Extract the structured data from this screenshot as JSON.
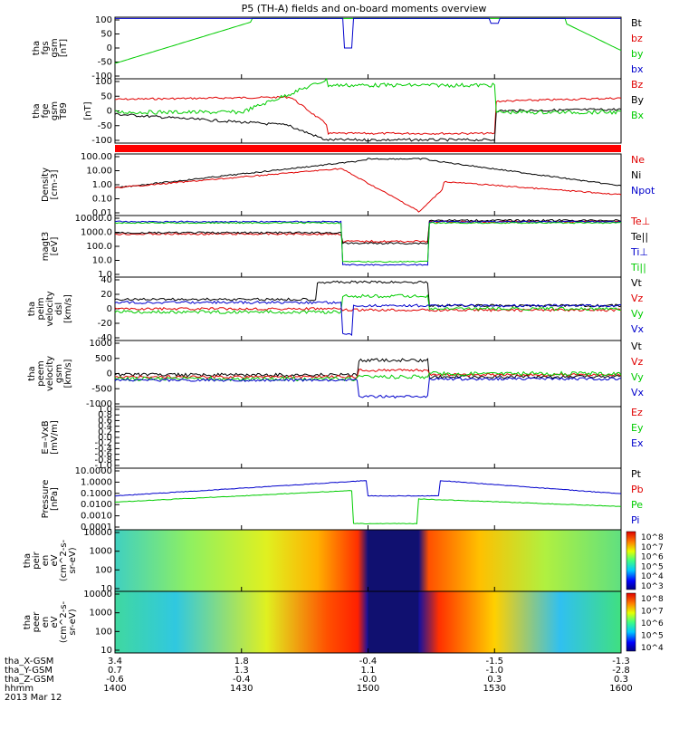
{
  "title": "P5 (TH-A) fields and on-board moments overview",
  "date_label": "2013 Mar 12",
  "orbit": {
    "row_labels": [
      "tha_X-GSM",
      "tha_Y-GSM",
      "tha_Z-GSM",
      "hhmm"
    ],
    "columns": [
      {
        "x": "3.4",
        "y": "0.7",
        "z": "-0.6",
        "hhmm": "1400"
      },
      {
        "x": "1.8",
        "y": "1.3",
        "z": "-0.4",
        "hhmm": "1430"
      },
      {
        "x": "-0.4",
        "y": "1.1",
        "z": "-0.0",
        "hhmm": "1500"
      },
      {
        "x": "-1.5",
        "y": "-1.0",
        "z": "0.3",
        "hhmm": "1530"
      },
      {
        "x": "-1.3",
        "y": "-2.8",
        "z": "0.3",
        "hhmm": "1600"
      }
    ]
  },
  "colors": {
    "black": "#000000",
    "red": "#e00000",
    "green": "#00cc00",
    "blue": "#0000cc",
    "axis": "#000000"
  },
  "chart_data": [
    {
      "type": "line",
      "ylabel_lines": [
        "tha",
        "fgs",
        "gsm",
        "[nT]"
      ],
      "ylim": [
        -100,
        100
      ],
      "tick_labels": [
        "100",
        "50",
        "0",
        "-50",
        "-100"
      ],
      "legend": [
        {
          "text": "Bt",
          "color": "black"
        },
        {
          "text": "bz",
          "color": "red"
        },
        {
          "text": "by",
          "color": "green"
        },
        {
          "text": "bx",
          "color": "blue"
        }
      ]
    },
    {
      "type": "line",
      "ylabel_lines": [
        "tha",
        "fge",
        "gsm",
        "T89"
      ],
      "ylabel_extra": "[nT]",
      "ylim": [
        -120,
        120
      ],
      "tick_labels": [
        "100",
        "50",
        "0",
        "-50",
        "-100"
      ],
      "legend": [
        {
          "text": "Bz",
          "color": "red"
        },
        {
          "text": "By",
          "color": "black"
        },
        {
          "text": "Bx",
          "color": "green"
        }
      ]
    },
    {
      "type": "line",
      "ylabel_lines": [
        "Density",
        "[cm-3]"
      ],
      "log": true,
      "tick_labels": [
        "100.00",
        "10.00",
        "1.00",
        "0.10",
        "0.01"
      ],
      "legend": [
        {
          "text": "Ne",
          "color": "red"
        },
        {
          "text": "Ni",
          "color": "black"
        },
        {
          "text": "Npot",
          "color": "blue"
        }
      ]
    },
    {
      "type": "line",
      "ylabel_lines": [
        "magt3",
        "[eV]"
      ],
      "log": true,
      "tick_labels": [
        "10000.0",
        "1000.0",
        "100.0",
        "10.0",
        "1.0"
      ],
      "legend": [
        {
          "text": "Te⊥",
          "color": "red"
        },
        {
          "text": "Te||",
          "color": "black"
        },
        {
          "text": "Ti⊥",
          "color": "blue"
        },
        {
          "text": "Ti||",
          "color": "green"
        }
      ]
    },
    {
      "type": "line",
      "ylabel_lines": [
        "tha",
        "peim",
        "velocity",
        "dsl",
        "[km/s]"
      ],
      "ylim": [
        -40,
        40
      ],
      "tick_labels": [
        "40",
        "20",
        "0",
        "-20",
        "-40"
      ],
      "legend": [
        {
          "text": "Vt",
          "color": "black"
        },
        {
          "text": "Vz",
          "color": "red"
        },
        {
          "text": "Vy",
          "color": "green"
        },
        {
          "text": "Vx",
          "color": "blue"
        }
      ]
    },
    {
      "type": "line",
      "ylabel_lines": [
        "tha",
        "peem",
        "velocity",
        "gsm",
        "[km/s]"
      ],
      "ylim": [
        -1200,
        1200
      ],
      "tick_labels": [
        "1000",
        "500",
        "0",
        "-500",
        "-1000"
      ],
      "legend": [
        {
          "text": "Vt",
          "color": "black"
        },
        {
          "text": "Vz",
          "color": "red"
        },
        {
          "text": "Vy",
          "color": "green"
        },
        {
          "text": "Vx",
          "color": "blue"
        }
      ]
    },
    {
      "type": "line",
      "ylabel_lines": [
        "E=-VxB",
        "[mV/m]"
      ],
      "ylim": [
        -1,
        1
      ],
      "tick_labels": [
        "1.0",
        "0.8",
        "0.6",
        "0.4",
        "0.2",
        "0.0",
        "-0.2",
        "-0.4",
        "-0.6",
        "-0.8",
        "-1.0"
      ],
      "legend": [
        {
          "text": "Ez",
          "color": "red"
        },
        {
          "text": "Ey",
          "color": "green"
        },
        {
          "text": "Ex",
          "color": "blue"
        }
      ]
    },
    {
      "type": "line",
      "ylabel_lines": [
        "Pressure",
        "[nPa]"
      ],
      "log": true,
      "tick_labels": [
        "10.0000",
        "1.0000",
        "0.1000",
        "0.0100",
        "0.0010",
        "0.0001"
      ],
      "legend": [
        {
          "text": "Pt",
          "color": "black"
        },
        {
          "text": "Pb",
          "color": "red"
        },
        {
          "text": "Pe",
          "color": "green"
        },
        {
          "text": "Pi",
          "color": "blue"
        }
      ]
    },
    {
      "type": "heatmap",
      "ylabel_lines": [
        "tha",
        "peir",
        "en",
        "eV",
        "(cm^2-s-",
        "sr-eV)"
      ],
      "tick_labels": [
        "10000",
        "1000",
        "100",
        "10"
      ],
      "colorbar_labels": [
        "10^8",
        "10^7",
        "10^6",
        "10^5",
        "10^4",
        "10^3"
      ]
    },
    {
      "type": "heatmap",
      "ylabel_lines": [
        "tha",
        "peer",
        "en",
        "eV",
        "(cm^2-s-",
        "sr-eV)"
      ],
      "tick_labels": [
        "10000",
        "1000",
        "100",
        "10"
      ],
      "colorbar_labels": [
        "10^8",
        "10^7",
        "10^6",
        "10^5",
        "10^4"
      ]
    }
  ]
}
